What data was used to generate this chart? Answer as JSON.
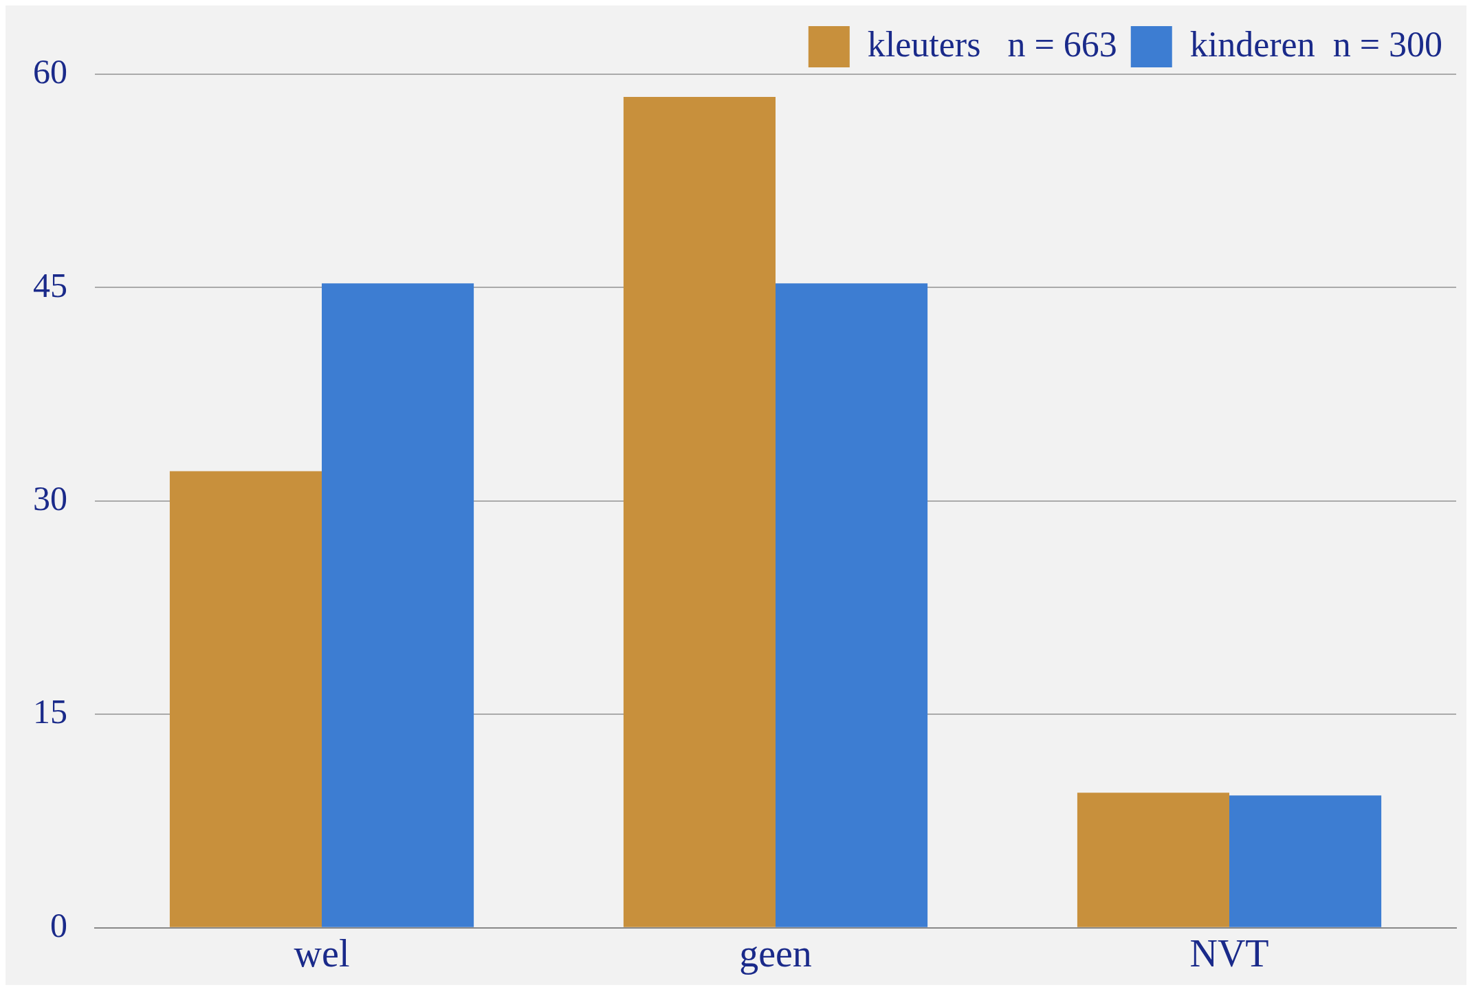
{
  "chart_data": {
    "type": "bar",
    "categories": [
      "wel",
      "geen",
      "NVT"
    ],
    "series": [
      {
        "name": "kleuters   n = 663",
        "color": "#c8903c",
        "values": [
          32.1,
          58.4,
          9.5
        ]
      },
      {
        "name": "kinderen  n = 300",
        "color": "#3d7dd2",
        "values": [
          45.3,
          45.3,
          9.3
        ]
      }
    ],
    "ylim": [
      0,
      60
    ],
    "yticks": [
      0,
      15,
      30,
      45,
      60
    ],
    "grid": "y",
    "legend": "top right"
  }
}
